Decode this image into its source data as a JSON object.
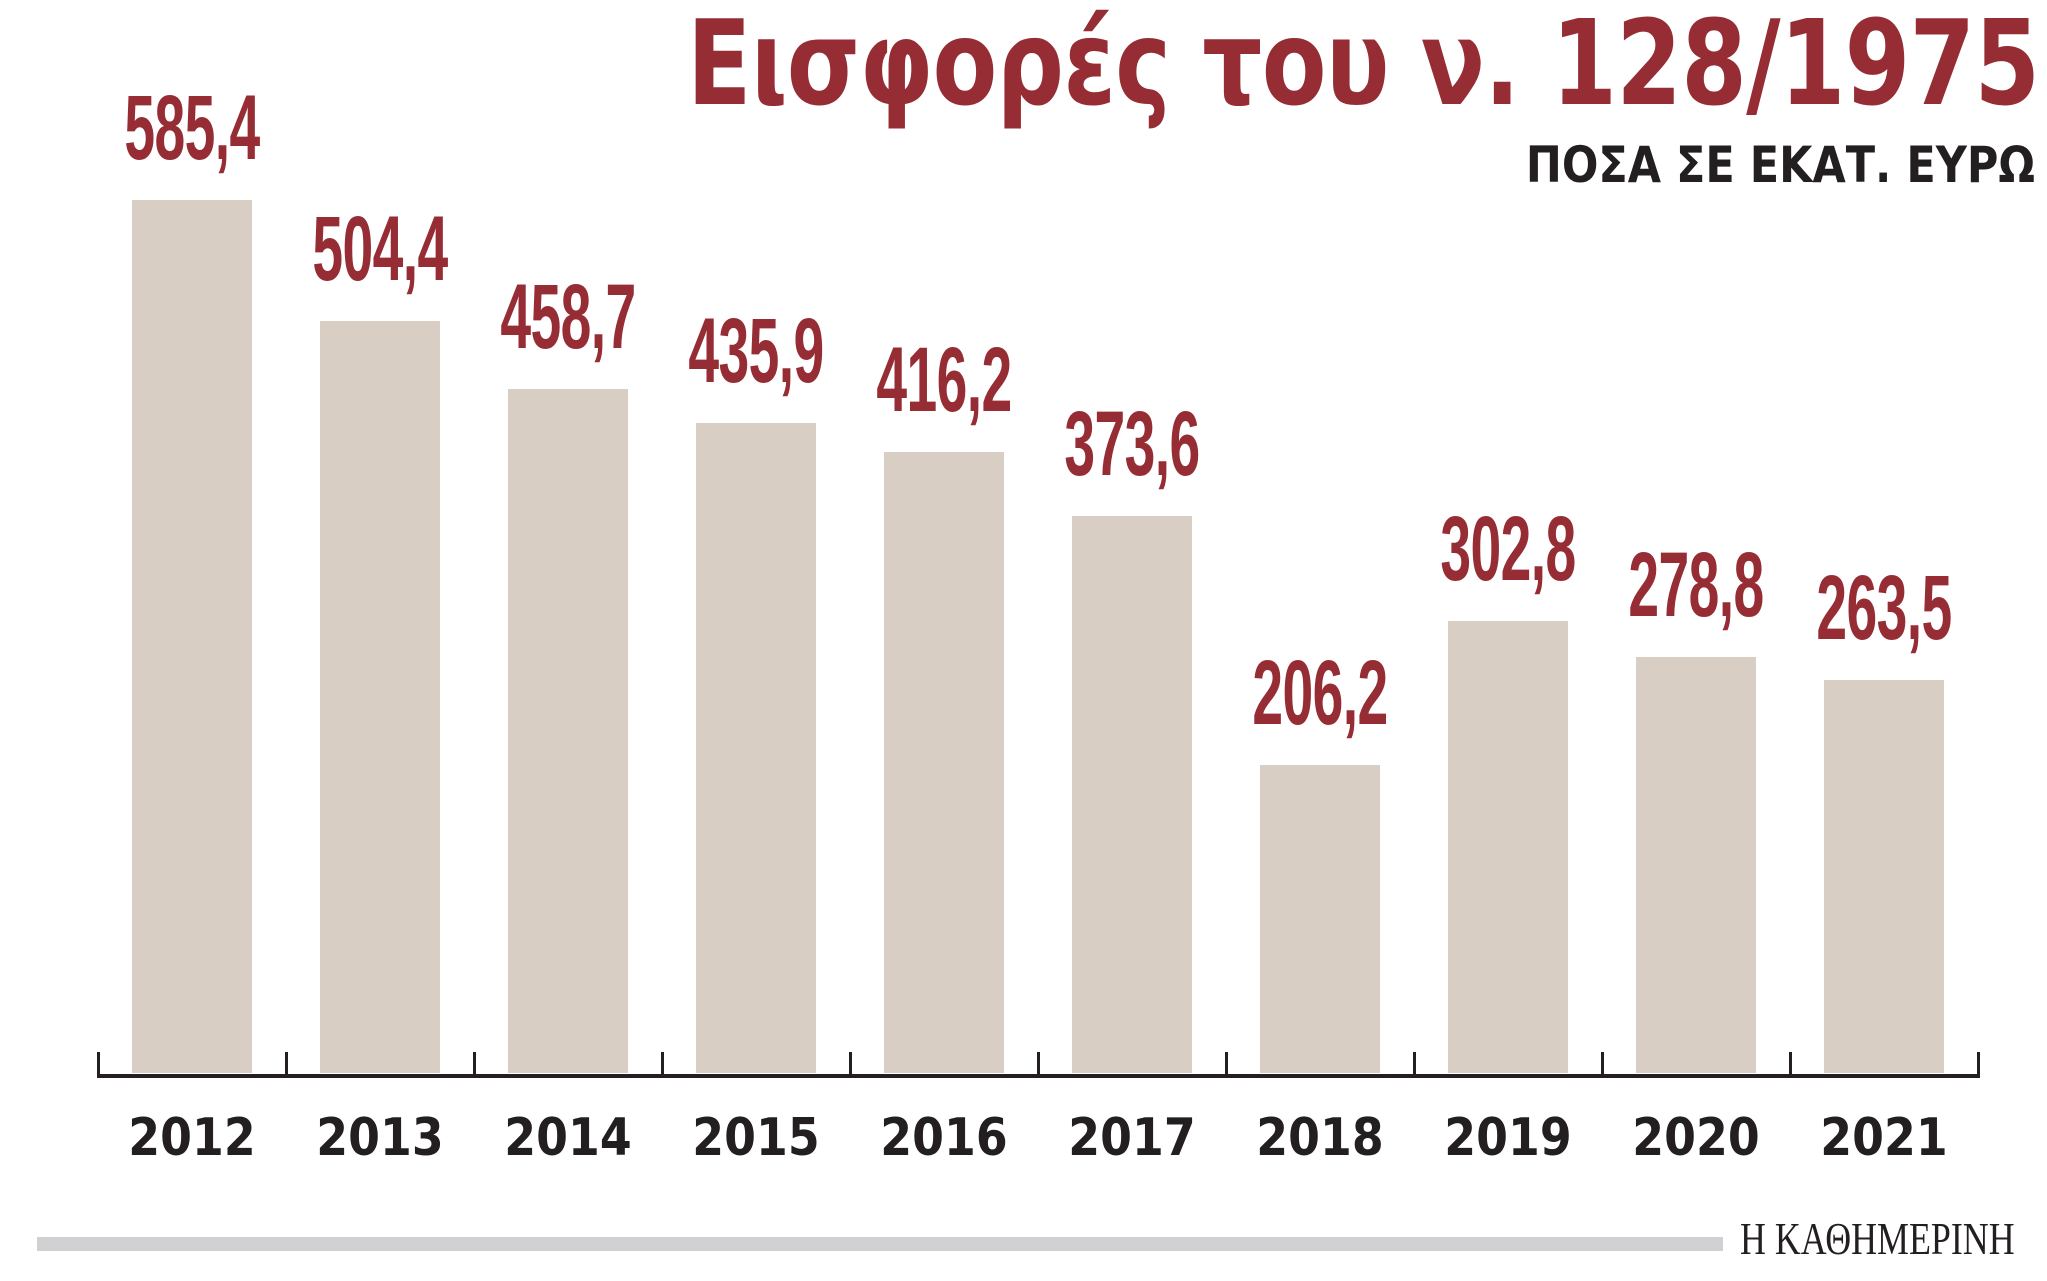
{
  "header": {
    "title": "Εισφορές του ν. 128/1975",
    "subtitle": "ΠΟΣΑ ΣΕ ΕΚΑΤ. ΕΥΡΩ"
  },
  "footer": {
    "logo": "Η ΚΑΘΗΜΕΡΙΝΗ"
  },
  "colors": {
    "title": "#962d35",
    "value_labels": "#962d35",
    "bars": "#d9cec3",
    "axis_text": "#231f20",
    "footer_bar": "#d1d1d3"
  },
  "bars": [
    {
      "year": "2012",
      "label": "585,4"
    },
    {
      "year": "2013",
      "label": "504,4"
    },
    {
      "year": "2014",
      "label": "458,7"
    },
    {
      "year": "2015",
      "label": "435,9"
    },
    {
      "year": "2016",
      "label": "416,2"
    },
    {
      "year": "2017",
      "label": "373,6"
    },
    {
      "year": "2018",
      "label": "206,2"
    },
    {
      "year": "2019",
      "label": "302,8"
    },
    {
      "year": "2020",
      "label": "278,8"
    },
    {
      "year": "2021",
      "label": "263,5"
    }
  ],
  "chart_data": {
    "type": "bar",
    "title": "Εισφορές του ν. 128/1975",
    "subtitle": "ΠΟΣΑ ΣΕ ΕΚΑΤ. ΕΥΡΩ",
    "categories": [
      "2012",
      "2013",
      "2014",
      "2015",
      "2016",
      "2017",
      "2018",
      "2019",
      "2020",
      "2021"
    ],
    "values": [
      585.4,
      504.4,
      458.7,
      435.9,
      416.2,
      373.6,
      206.2,
      302.8,
      278.8,
      263.5
    ],
    "xlabel": "",
    "ylabel": "",
    "data_labels": true,
    "grid": false,
    "legend": null,
    "source": "Η ΚΑΘΗΜΕΡΙΝΗ"
  }
}
